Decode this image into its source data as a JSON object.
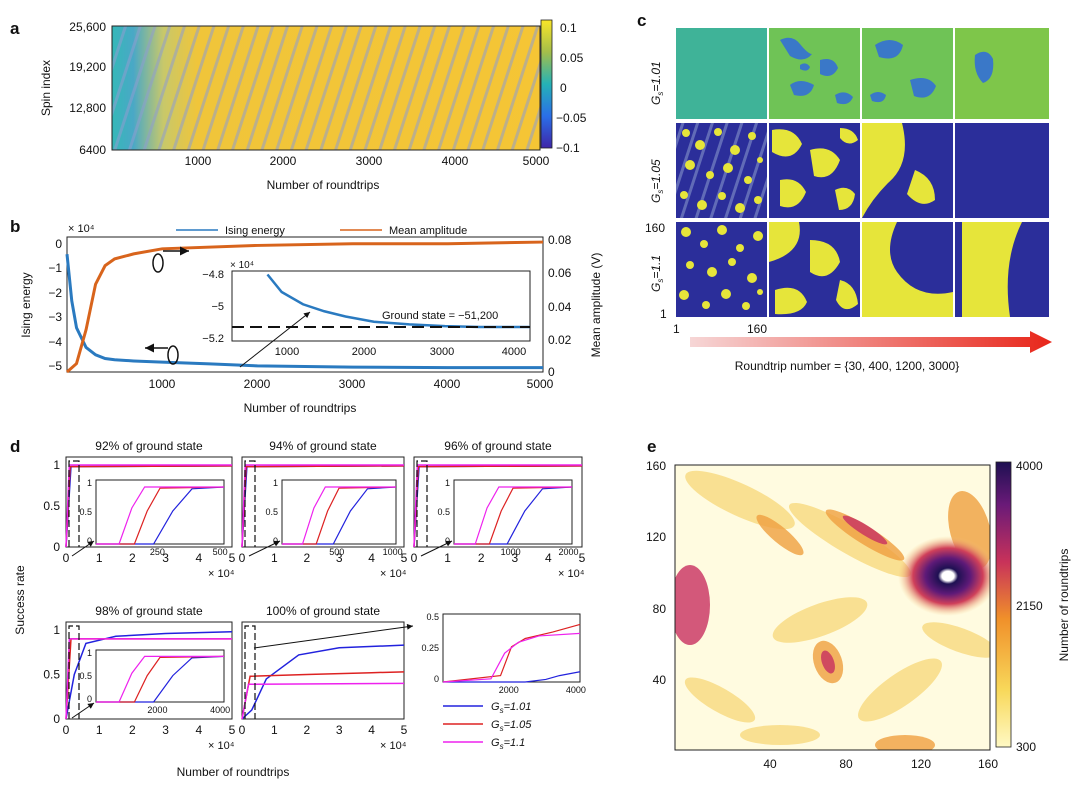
{
  "panel_labels": {
    "a": "a",
    "b": "b",
    "c": "c",
    "d": "d",
    "e": "e"
  },
  "colors": {
    "parula_low": "#3e26a8",
    "parula_mid": "#25b2b6",
    "parula_high": "#f9e528",
    "ising": "#2a7ac0",
    "amplitude": "#d8641c",
    "g101": "#2222dd",
    "g105": "#dd2222",
    "g11": "#ee22ee",
    "heat_low": "#fff9c4",
    "heat_high": "#1e1052"
  },
  "chart_data": [
    {
      "id": "a",
      "type": "heatmap",
      "ylabel": "Spin index",
      "xlabel": "Number of roundtrips",
      "yticks": [
        "25,600",
        "19,200",
        "12,800",
        "6400"
      ],
      "xticks": [
        "1000",
        "2000",
        "3000",
        "4000",
        "5000"
      ],
      "colorbar_ticks": [
        "0.1",
        "0.05",
        "0",
        "−0.05",
        "−0.1"
      ],
      "xlim": [
        0,
        5000
      ],
      "zlim": [
        -0.1,
        0.1
      ]
    },
    {
      "id": "b",
      "type": "line",
      "ylabel": "Ising energy",
      "ylabel_right": "Mean amplitude (V)",
      "xlabel": "Number of roundtrips",
      "y_exponent": "× 10⁴",
      "legend": [
        "Ising energy",
        "Mean amplitude"
      ],
      "yticks": [
        "0",
        "−1",
        "−2",
        "−3",
        "−4",
        "−5"
      ],
      "yticks_right": [
        "0.08",
        "0.06",
        "0.04",
        "0.02",
        "0"
      ],
      "xticks": [
        "1000",
        "2000",
        "3000",
        "4000",
        "5000"
      ],
      "xlim": [
        0,
        5000
      ],
      "ylim": [
        -5.3,
        0.2
      ],
      "ylim_right": [
        0,
        0.08
      ],
      "series": [
        {
          "name": "Ising energy",
          "x": [
            0,
            50,
            100,
            200,
            300,
            400,
            500,
            700,
            1000,
            1500,
            2000,
            3000,
            4000,
            5000
          ],
          "values": [
            -0.5,
            -2.4,
            -3.5,
            -4.3,
            -4.6,
            -4.75,
            -4.8,
            -4.85,
            -4.9,
            -4.97,
            -5.05,
            -5.1,
            -5.12,
            -5.12
          ]
        },
        {
          "name": "Mean amplitude",
          "x": [
            0,
            100,
            200,
            300,
            400,
            500,
            700,
            1000,
            2000,
            3000,
            4000,
            5000
          ],
          "values": [
            0.0,
            0.005,
            0.025,
            0.052,
            0.063,
            0.067,
            0.07,
            0.073,
            0.075,
            0.076,
            0.076,
            0.077
          ]
        }
      ],
      "inset": {
        "y_exponent": "× 10⁴",
        "yticks": [
          "−4.8",
          "−5",
          "−5.2"
        ],
        "xticks": [
          "1000",
          "2000",
          "3000",
          "4000"
        ],
        "annotation": "Ground state = −51,200",
        "ground_state": -5.12,
        "xlim": [
          0,
          4200
        ],
        "ylim": [
          -5.2,
          -4.8
        ],
        "series": [
          {
            "name": "Ising energy",
            "x": [
              500,
              700,
              1000,
              1300,
              1600,
              2000,
              2500,
              3000,
              3500,
              4200
            ],
            "values": [
              -4.82,
              -4.92,
              -4.99,
              -5.03,
              -5.06,
              -5.09,
              -5.105,
              -5.115,
              -5.12,
              -5.12
            ]
          }
        ]
      }
    },
    {
      "id": "c",
      "type": "heatmap",
      "row_labels": [
        "G",
        "G",
        "G"
      ],
      "row_subs": [
        "s",
        "s",
        "s"
      ],
      "row_values": [
        "=1.01",
        "=1.05",
        "=1.1"
      ],
      "axis_ticks": {
        "y_top": "160",
        "y_bottom": "1",
        "x_left": "1",
        "x_right": "160"
      },
      "caption": "Roundtrip number = {30, 400, 1200, 3000}",
      "roundtrips": [
        30,
        400,
        1200,
        3000
      ]
    },
    {
      "id": "d",
      "type": "line",
      "ylabel": "Success rate",
      "xlabel": "Number of roundtrips",
      "x_exponent": "× 10⁴",
      "yticks": [
        "1",
        "0.5",
        "0"
      ],
      "xticks": [
        "0",
        "1",
        "2",
        "3",
        "4",
        "5"
      ],
      "titles": [
        "92% of ground state",
        "94% of ground state",
        "96% of ground state",
        "98% of ground state",
        "100% of ground state"
      ],
      "insets": [
        {
          "xticks": [
            "250",
            "500"
          ],
          "yticks": [
            "1",
            "0.5",
            "0"
          ],
          "xlim": [
            0,
            520
          ]
        },
        {
          "xticks": [
            "500",
            "1000"
          ],
          "yticks": [
            "1",
            "0.5",
            "0"
          ],
          "xlim": [
            0,
            1050
          ]
        },
        {
          "xticks": [
            "1000",
            "2000"
          ],
          "yticks": [
            "1",
            "0.5",
            "0"
          ],
          "xlim": [
            0,
            2100
          ]
        },
        {
          "xticks": [
            "2000",
            "4000"
          ],
          "yticks": [
            "1",
            "0.5",
            "0"
          ],
          "xlim": [
            0,
            4200
          ]
        },
        {
          "xticks": [
            "2000",
            "4000"
          ],
          "yticks": [
            "0.5",
            "0.25",
            "0"
          ],
          "xlim": [
            0,
            4000
          ]
        }
      ],
      "legend": [
        {
          "label": "G",
          "sub": "s",
          "value": "=1.01"
        },
        {
          "label": "G",
          "sub": "s",
          "value": "=1.05"
        },
        {
          "label": "G",
          "sub": "s",
          "value": "=1.1"
        }
      ],
      "final_success_100": [
        0.83,
        0.53,
        0.41
      ]
    },
    {
      "id": "e",
      "type": "heatmap",
      "yticks": [
        "160",
        "120",
        "80",
        "40"
      ],
      "xticks": [
        "40",
        "80",
        "120",
        "160"
      ],
      "colorbar_label": "Number of roundtrips",
      "colorbar_ticks": [
        "4000",
        "2150",
        "300"
      ],
      "zlim": [
        300,
        4000
      ]
    }
  ]
}
